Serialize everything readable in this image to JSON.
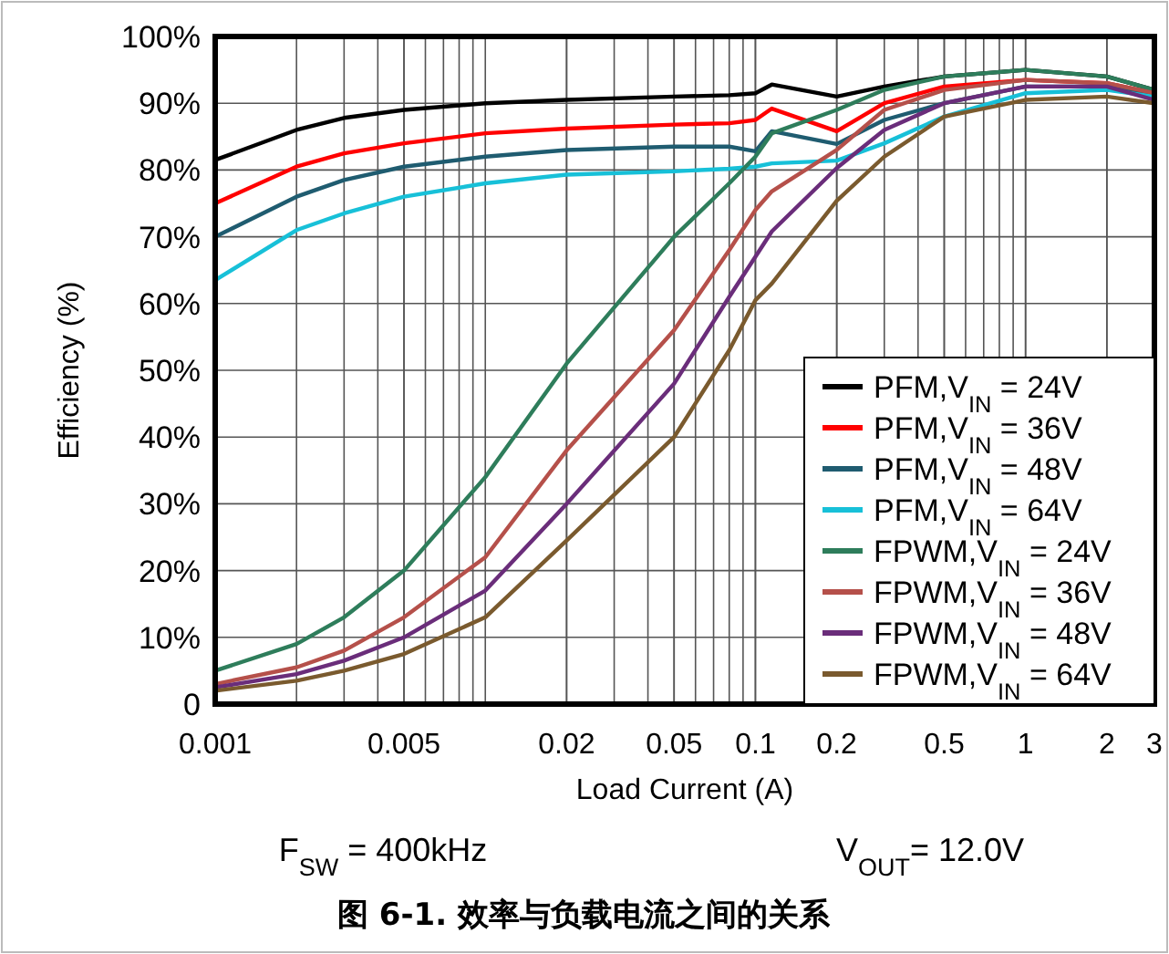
{
  "chart_data": {
    "type": "line",
    "xlabel": "Load Current (A)",
    "ylabel": "Efficiency (%)",
    "annotations": [
      "F$_{SW}$ = 400kHz",
      "V$_{OUT}$= 12.0V",
      "图 6-1. 效率与负载电流之间的关系"
    ],
    "x": [
      0.001,
      0.002,
      0.003,
      0.005,
      0.01,
      0.02,
      0.05,
      0.08,
      0.1,
      0.115,
      0.2,
      0.3,
      0.5,
      1,
      2,
      3
    ],
    "series": [
      {
        "name": "PFM,V$_{IN}$ = 24V",
        "color": "#000000",
        "values": [
          81.5,
          86,
          87.8,
          89,
          90,
          90.5,
          91,
          91.2,
          91.5,
          92.8,
          91,
          92.5,
          94,
          95,
          94,
          92
        ]
      },
      {
        "name": "PFM,V$_{IN}$ = 36V",
        "color": "#ff0000",
        "values": [
          75,
          80.5,
          82.5,
          84,
          85.5,
          86.2,
          86.8,
          87,
          87.5,
          89.2,
          85.8,
          90,
          92.5,
          93.5,
          93,
          91.5
        ]
      },
      {
        "name": "PFM,V$_{IN}$ = 48V",
        "color": "#1f5c70",
        "values": [
          70,
          76,
          78.5,
          80.5,
          82,
          83,
          83.5,
          83.5,
          82.8,
          85.8,
          83.9,
          87.5,
          90,
          92.5,
          92.5,
          91
        ]
      },
      {
        "name": "PFM,V$_{IN}$ = 64V",
        "color": "#17c0d8",
        "values": [
          63.5,
          71,
          73.5,
          76,
          78,
          79.3,
          79.8,
          80.2,
          80.5,
          81,
          81.4,
          84,
          88,
          91.5,
          92,
          91
        ]
      },
      {
        "name": "FPWM,V$_{IN}$ = 24V",
        "color": "#2e7d5b",
        "values": [
          5,
          9,
          13,
          20,
          34,
          51,
          70,
          78,
          82,
          85.5,
          89,
          92,
          94,
          95,
          94,
          92
        ]
      },
      {
        "name": "FPWM,V$_{IN}$ = 36V",
        "color": "#b5504a",
        "values": [
          3,
          5.5,
          8,
          13,
          22,
          38,
          56,
          68,
          74,
          76.8,
          83,
          89,
          92,
          93.5,
          93,
          91.5
        ]
      },
      {
        "name": "FPWM,V$_{IN}$ = 48V",
        "color": "#6a2d7a",
        "values": [
          2.5,
          4.5,
          6.5,
          10,
          17,
          30,
          48,
          61,
          67,
          70.8,
          80.3,
          86,
          90,
          92.5,
          92.5,
          90.5
        ]
      },
      {
        "name": "FPWM,V$_{IN}$ = 64V",
        "color": "#7a5a2e",
        "values": [
          2,
          3.5,
          5,
          7.5,
          13,
          24.5,
          40,
          53,
          60.5,
          63,
          75.4,
          82,
          88,
          90.5,
          91,
          90
        ]
      }
    ],
    "log": "x",
    "xlim": [
      0.001,
      3
    ],
    "ylim": [
      0,
      100
    ],
    "xticks": [
      0.001,
      0.005,
      0.02,
      0.05,
      0.1,
      0.2,
      0.5,
      1,
      2,
      3
    ],
    "yticks": [
      {
        "value": 0,
        "label": "0"
      },
      {
        "value": 10,
        "label": "10%"
      },
      {
        "value": 20,
        "label": "20%"
      },
      {
        "value": 30,
        "label": "30%"
      },
      {
        "value": 40,
        "label": "40%"
      },
      {
        "value": 50,
        "label": "50%"
      },
      {
        "value": 60,
        "label": "60%"
      },
      {
        "value": 70,
        "label": "70%"
      },
      {
        "value": 80,
        "label": "80%"
      },
      {
        "value": 90,
        "label": "90%"
      },
      {
        "value": 100,
        "label": "100%"
      }
    ],
    "grid": true,
    "legend": "bottom right",
    "marker": "none",
    "line_style": "solid"
  }
}
